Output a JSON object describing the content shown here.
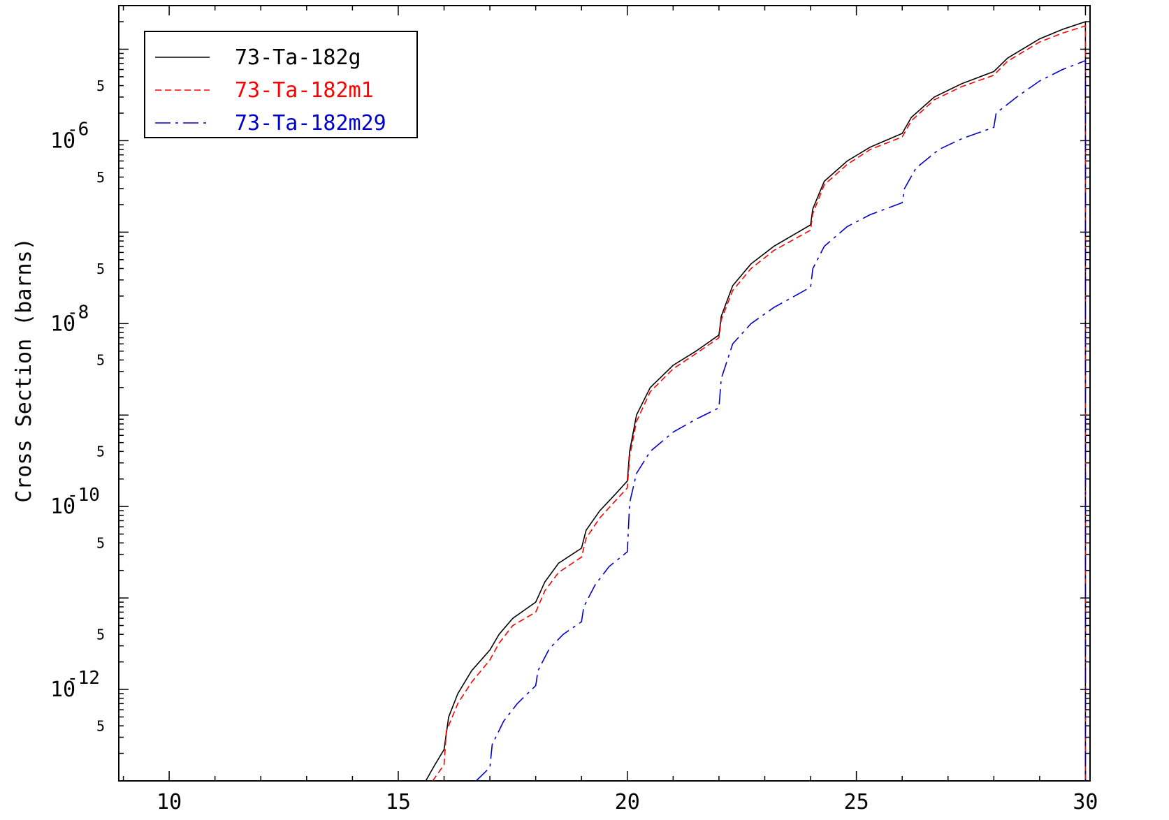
{
  "chart_data": {
    "type": "line",
    "title": "",
    "xlabel": "",
    "ylabel": "Cross Section (barns)",
    "xscale": "linear",
    "yscale": "log",
    "xlim": [
      8.9,
      30.1
    ],
    "ylim": [
      1e-13,
      3e-05
    ],
    "x_ticks": [
      10,
      15,
      20,
      25,
      30
    ],
    "x_tick_labels": [
      "10",
      "15",
      "20",
      "25",
      "30"
    ],
    "y_major_ticks": [
      {
        "value": 1e-06,
        "mantissa": "10",
        "exponent": "-6"
      },
      {
        "value": 1e-08,
        "mantissa": "10",
        "exponent": "-8"
      },
      {
        "value": 1e-10,
        "mantissa": "10",
        "exponent": "-10"
      },
      {
        "value": 1e-12,
        "mantissa": "10",
        "exponent": "-12"
      }
    ],
    "y_minor_ticks": [
      {
        "value": 5e-06,
        "label": "5"
      },
      {
        "value": 1e-06,
        "label": ""
      },
      {
        "value": 5e-07,
        "label": "5"
      },
      {
        "value": 1e-07,
        "label": ""
      },
      {
        "value": 5e-08,
        "label": "5"
      },
      {
        "value": 5e-09,
        "label": "5"
      },
      {
        "value": 1e-09,
        "label": ""
      },
      {
        "value": 5e-10,
        "label": "5"
      },
      {
        "value": 5e-11,
        "label": "5"
      },
      {
        "value": 1e-11,
        "label": ""
      },
      {
        "value": 5e-12,
        "label": "5"
      },
      {
        "value": 5e-13,
        "label": "5"
      }
    ],
    "grid": false,
    "legend_position": "top-left",
    "series": [
      {
        "name": "73-Ta-182g",
        "color": "#000000",
        "style": "solid",
        "x": [
          15.6,
          15.8,
          16.0,
          16.1,
          16.3,
          16.6,
          17.0,
          17.2,
          17.5,
          18.0,
          18.2,
          18.5,
          19.0,
          19.1,
          19.4,
          19.7,
          20.0,
          20.05,
          20.2,
          20.5,
          21.0,
          21.5,
          22.0,
          22.05,
          22.3,
          22.7,
          23.2,
          24.0,
          24.05,
          24.3,
          24.8,
          25.3,
          26.0,
          26.2,
          26.7,
          27.3,
          28.0,
          28.3,
          29.0,
          29.5,
          30.0,
          30.0
        ],
        "y": [
          1e-13,
          1.5e-13,
          2.2e-13,
          5e-13,
          9e-13,
          1.6e-12,
          2.7e-12,
          4e-12,
          6e-12,
          9e-12,
          1.5e-11,
          2.4e-11,
          3.5e-11,
          5.5e-11,
          9e-11,
          1.3e-10,
          1.9e-10,
          4e-10,
          1e-09,
          2e-09,
          3.5e-09,
          5e-09,
          7.5e-09,
          1.2e-08,
          2.6e-08,
          4.5e-08,
          7e-08,
          1.2e-07,
          1.8e-07,
          3.6e-07,
          6e-07,
          8.5e-07,
          1.2e-06,
          1.8e-06,
          3e-06,
          4.2e-06,
          5.7e-06,
          8e-06,
          1.3e-05,
          1.65e-05,
          2e-05,
          1e-13
        ]
      },
      {
        "name": "73-Ta-182m1",
        "color": "#ff0000",
        "style": "dashed",
        "x": [
          15.75,
          16.0,
          16.05,
          16.3,
          16.6,
          17.0,
          17.2,
          17.5,
          18.0,
          18.2,
          18.5,
          19.0,
          19.1,
          19.4,
          19.7,
          20.0,
          20.05,
          20.2,
          20.5,
          21.0,
          21.5,
          22.0,
          22.05,
          22.3,
          22.7,
          23.2,
          24.0,
          24.05,
          24.3,
          24.8,
          25.3,
          26.0,
          26.2,
          26.7,
          27.3,
          28.0,
          28.3,
          29.0,
          29.5,
          30.0,
          30.0
        ],
        "y": [
          1e-13,
          1.5e-13,
          3.5e-13,
          7e-13,
          1.2e-12,
          2.1e-12,
          3.2e-12,
          5e-12,
          7e-12,
          1.2e-11,
          1.9e-11,
          2.8e-11,
          4.5e-11,
          7.5e-11,
          1.1e-10,
          1.6e-10,
          3.5e-10,
          8.5e-10,
          1.8e-09,
          3.2e-09,
          4.7e-09,
          7e-09,
          1.1e-08,
          2.3e-08,
          4e-08,
          6.3e-08,
          1.05e-07,
          1.6e-07,
          3.3e-07,
          5.5e-07,
          8e-07,
          1.1e-06,
          1.65e-06,
          2.8e-06,
          3.9e-06,
          5.2e-06,
          7.4e-06,
          1.2e-05,
          1.5e-05,
          1.8e-05,
          1e-13
        ]
      },
      {
        "name": "73-Ta-182m29",
        "color": "#0000cc",
        "style": "dashdot",
        "x": [
          16.7,
          17.0,
          17.05,
          17.3,
          17.6,
          18.0,
          18.05,
          18.3,
          18.6,
          19.0,
          19.05,
          19.3,
          19.6,
          20.0,
          20.05,
          20.2,
          20.5,
          21.0,
          21.5,
          22.0,
          22.05,
          22.3,
          22.7,
          23.2,
          24.0,
          24.05,
          24.3,
          24.8,
          25.3,
          26.0,
          26.05,
          26.3,
          26.8,
          27.3,
          28.0,
          28.05,
          28.5,
          29.0,
          29.5,
          30.0,
          30.0
        ],
        "y": [
          1e-13,
          1.4e-13,
          2.5e-13,
          4.5e-13,
          7e-13,
          1.1e-12,
          1.6e-12,
          2.8e-12,
          4e-12,
          5.5e-12,
          8e-12,
          1.4e-11,
          2.2e-11,
          3.2e-11,
          1.1e-10,
          2.3e-10,
          4e-10,
          6.5e-10,
          9e-10,
          1.2e-09,
          2.5e-09,
          6e-09,
          1e-08,
          1.5e-08,
          2.5e-08,
          4e-08,
          7e-08,
          1.15e-07,
          1.55e-07,
          2.1e-07,
          3e-07,
          5e-07,
          8e-07,
          1.05e-06,
          1.4e-06,
          2e-06,
          3e-06,
          4.5e-06,
          6e-06,
          7.5e-06,
          1e-13
        ]
      }
    ]
  }
}
